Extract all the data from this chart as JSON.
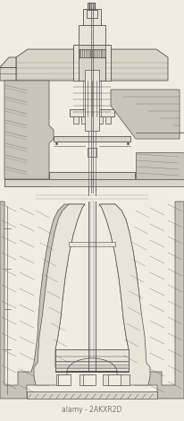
{
  "bg_color": "#f0ece0",
  "line_color": "#555050",
  "fill_light": "#e8e4d8",
  "fill_mid": "#d8d4c8",
  "fill_gray": "#c8c4b8",
  "fill_dark": "#a8a498",
  "watermark_text": "alamy - 2AKXR2D",
  "watermark_color": "#777777",
  "fig_width": 2.06,
  "fig_height": 4.7,
  "dpi": 100
}
